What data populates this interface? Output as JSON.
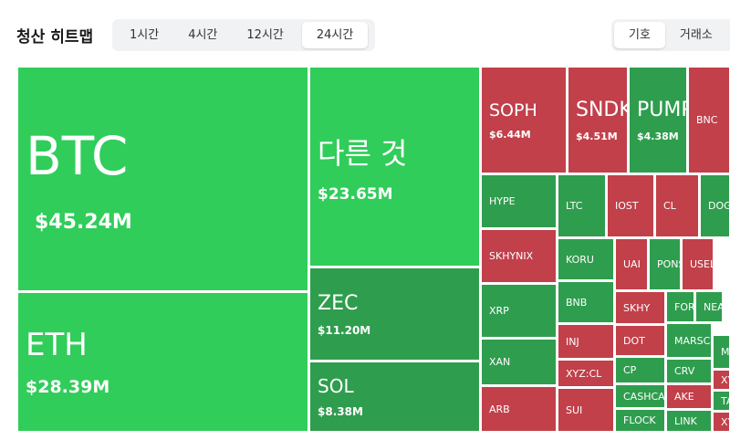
{
  "header": {
    "title": "청산 히트맵",
    "time_tabs": [
      "1시간",
      "4시간",
      "12시간",
      "24시간"
    ],
    "group_tabs": [
      "기호",
      "거래소"
    ]
  },
  "tiles": [
    {
      "label": "BTC",
      "value": "$45.24M"
    },
    {
      "label": "ETH",
      "value": "$28.39M"
    },
    {
      "label": "다른 것",
      "value": "$23.65M"
    },
    {
      "label": "ZEC",
      "value": "$11.20M"
    },
    {
      "label": "SOL",
      "value": "$8.38M"
    },
    {
      "label": "SOPH",
      "value": "$6.44M"
    },
    {
      "label": "SNDK",
      "value": "$4.51M"
    },
    {
      "label": "PUMP",
      "value": "$4.38M"
    },
    {
      "label": "BNC"
    },
    {
      "label": "HYPE"
    },
    {
      "label": "LTC"
    },
    {
      "label": "IOST"
    },
    {
      "label": "CL"
    },
    {
      "label": "DOGE"
    },
    {
      "label": "SKHYNIX"
    },
    {
      "label": "KORU"
    },
    {
      "label": "UAI"
    },
    {
      "label": "PONS"
    },
    {
      "label": "USEL"
    },
    {
      "label": "XRP"
    },
    {
      "label": "BNB"
    },
    {
      "label": "SKHY"
    },
    {
      "label": "FOR"
    },
    {
      "label": "NEA"
    },
    {
      "label": "XAN"
    },
    {
      "label": "INJ"
    },
    {
      "label": "DOT"
    },
    {
      "label": "MARSC"
    },
    {
      "label": "MU"
    },
    {
      "label": "XYZ:CL"
    },
    {
      "label": "CP"
    },
    {
      "label": "CRV"
    },
    {
      "label": "XY"
    },
    {
      "label": "ARB"
    },
    {
      "label": "SUI"
    },
    {
      "label": "CASHCA"
    },
    {
      "label": "AKE"
    },
    {
      "label": "TA"
    },
    {
      "label": "FLOCK"
    },
    {
      "label": "LINK"
    },
    {
      "label": "XY"
    }
  ]
}
